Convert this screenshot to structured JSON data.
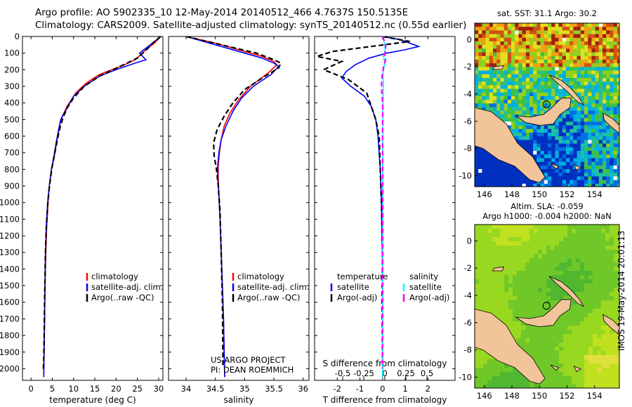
{
  "header": {
    "line1": "Argo profile: AO 5902335_10 12-May-2014 20140512_466 4.7637S 150.5135E",
    "line2": "Climatology: CARS2009. Satellite-adjusted climatology: synTS_20140512.nc (0.55d earlier)"
  },
  "footer": {
    "project": "US ARGO PROJECT",
    "pi": "PI: DEAN ROEMMICH"
  },
  "side_label": "IMOS 19-May-2014 20:01:13",
  "colors": {
    "climatology": "#ff0000",
    "satellite": "#0000ff",
    "argo": "#000000",
    "sal_satellite": "#00ffff",
    "sal_argo": "#ff00ff"
  },
  "chart_data": [
    {
      "type": "line",
      "id": "temperature",
      "xlabel": "temperature (deg C)",
      "ylabel": "",
      "xlim": [
        -2,
        31
      ],
      "ylim": [
        2070,
        0
      ],
      "invert_y": true,
      "xticks": [
        0,
        5,
        10,
        15,
        20,
        25,
        30
      ],
      "yticks": [
        0,
        100,
        200,
        300,
        400,
        500,
        600,
        700,
        800,
        900,
        1000,
        1100,
        1200,
        1300,
        1400,
        1500,
        1600,
        1700,
        1800,
        1900,
        2000
      ],
      "legend": [
        "climatology",
        "satellite-adj. clim.",
        "Argo(..raw -QC)"
      ],
      "series": [
        {
          "name": "climatology",
          "color": "#ff0000",
          "style": "solid",
          "x": [
            30.5,
            29,
            27,
            24.5,
            22,
            19,
            16,
            13,
            10.5,
            8.5,
            7,
            6.6,
            6,
            5.5,
            4.8,
            4.3,
            4,
            3.7,
            3.5,
            3.3,
            3.2,
            3.1,
            3,
            3
          ],
          "y": [
            0,
            40,
            80,
            140,
            170,
            200,
            230,
            280,
            340,
            420,
            500,
            560,
            640,
            720,
            800,
            900,
            1000,
            1150,
            1300,
            1500,
            1700,
            1850,
            2000,
            2050
          ]
        },
        {
          "name": "satellite",
          "color": "#0000ff",
          "style": "solid",
          "x": [
            30.5,
            29.5,
            27.5,
            25.5,
            27,
            24.5,
            20,
            16,
            12.5,
            10,
            8.5,
            7,
            6.5,
            5.9,
            5.4,
            4.8,
            4.3,
            3.9,
            3.6,
            3.4,
            3.3,
            3.2,
            3.1,
            3
          ],
          "y": [
            0,
            20,
            60,
            100,
            140,
            160,
            200,
            240,
            300,
            360,
            430,
            500,
            560,
            640,
            720,
            800,
            900,
            1000,
            1150,
            1300,
            1500,
            1700,
            1900,
            2050
          ]
        },
        {
          "name": "argo",
          "color": "#000000",
          "style": "dashed",
          "x": [
            30.5,
            29,
            27.5,
            25,
            21,
            16,
            12.5,
            10,
            8.5,
            7.5,
            6.8,
            6.2,
            5.6,
            5,
            4.6,
            4.2,
            3.9,
            3.6,
            3.4,
            3.3,
            3.2,
            3.1,
            3,
            2.9
          ],
          "y": [
            0,
            30,
            70,
            130,
            180,
            240,
            300,
            370,
            430,
            490,
            550,
            620,
            700,
            780,
            850,
            930,
            1020,
            1150,
            1300,
            1450,
            1600,
            1800,
            1950,
            2000
          ]
        }
      ]
    },
    {
      "type": "line",
      "id": "salinity",
      "xlabel": "salinity",
      "xlim": [
        33.7,
        36.1
      ],
      "ylim": [
        2070,
        0
      ],
      "invert_y": true,
      "xticks": [
        34,
        34.5,
        35,
        35.5,
        36
      ],
      "legend": [
        "climatology",
        "satellite-adj. clim.",
        "Argo(..raw -QC)"
      ],
      "series": [
        {
          "name": "climatology",
          "color": "#ff0000",
          "style": "solid",
          "x": [
            34,
            34.5,
            35,
            35.3,
            35.5,
            35.55,
            35.4,
            35.1,
            34.9,
            34.75,
            34.65,
            34.6,
            34.57,
            34.55,
            34.55,
            34.56,
            34.58,
            34.6,
            34.62,
            34.64,
            34.65,
            34.66
          ],
          "y": [
            0,
            40,
            90,
            120,
            150,
            170,
            220,
            300,
            380,
            460,
            540,
            620,
            700,
            780,
            850,
            950,
            1100,
            1300,
            1500,
            1700,
            1900,
            2050
          ]
        },
        {
          "name": "satellite",
          "color": "#0000ff",
          "style": "solid",
          "x": [
            34,
            34.4,
            34.9,
            35.3,
            35.5,
            35.58,
            35.45,
            35.15,
            34.95,
            34.8,
            34.68,
            34.6,
            34.56,
            34.54,
            34.54,
            34.56,
            34.58,
            34.6,
            34.62,
            34.64,
            34.65,
            34.66
          ],
          "y": [
            0,
            40,
            90,
            130,
            160,
            180,
            230,
            300,
            370,
            450,
            540,
            620,
            700,
            780,
            850,
            950,
            1100,
            1300,
            1500,
            1700,
            1900,
            2050
          ]
        },
        {
          "name": "argo",
          "color": "#000000",
          "style": "dashed",
          "x": [
            34,
            34.6,
            35.2,
            35.5,
            35.62,
            35.58,
            35.3,
            35.0,
            34.8,
            34.65,
            34.53,
            34.47,
            34.48,
            34.52,
            34.55,
            34.58,
            34.6,
            34.62,
            34.63
          ],
          "y": [
            0,
            50,
            100,
            140,
            160,
            190,
            250,
            320,
            400,
            480,
            560,
            640,
            720,
            800,
            900,
            1050,
            1300,
            1600,
            1980
          ]
        }
      ]
    },
    {
      "type": "line",
      "id": "differences",
      "xlabel": "T difference from climatology",
      "xlabel_top": "S difference from climatology",
      "xlim": [
        -3,
        3.2
      ],
      "ylim": [
        2070,
        0
      ],
      "invert_y": true,
      "xticks": [
        -2,
        -1,
        0,
        1,
        2
      ],
      "xticks_top": [
        -0.5,
        -0.25,
        0,
        0.25,
        0.5
      ],
      "xticks_top_labels": [
        "-0.5",
        "-0.25",
        "0",
        "0.25",
        "0.5"
      ],
      "legend_temperature": {
        "title": "temperature",
        "items": [
          "satellite",
          "Argo(-adj)"
        ]
      },
      "legend_salinity": {
        "title": "salinity",
        "items": [
          "satellite",
          "Argo(-adj)"
        ]
      },
      "series": [
        {
          "name": "T satellite",
          "color": "#0000ff",
          "style": "solid",
          "x": [
            0,
            0.8,
            1.2,
            1.6,
            1.0,
            0.2,
            -0.6,
            -1.2,
            -1.6,
            -1.8,
            -1.4,
            -0.8,
            -0.5,
            -0.3,
            -0.2,
            -0.1,
            -0.05,
            0,
            0,
            0
          ],
          "y": [
            0,
            20,
            40,
            60,
            80,
            100,
            130,
            170,
            210,
            250,
            300,
            360,
            420,
            500,
            600,
            800,
            1000,
            1400,
            1800,
            2050
          ]
        },
        {
          "name": "T argo",
          "color": "#000000",
          "style": "dashed",
          "x": [
            0,
            1.2,
            -0.5,
            -2.2,
            -2.9,
            -1.8,
            -2.6,
            -1.5,
            -0.7,
            -0.5,
            -0.3,
            -0.15,
            -0.1,
            -0.05,
            0,
            -0.02,
            0
          ],
          "y": [
            0,
            30,
            60,
            90,
            120,
            150,
            200,
            260,
            340,
            420,
            500,
            600,
            800,
            1000,
            1300,
            1600,
            2000
          ]
        },
        {
          "name": "S satellite",
          "color": "#00ffff",
          "style": "solid",
          "x": [
            0,
            0.08,
            0.12,
            0.05,
            0.1,
            0.02,
            0.04,
            0.02,
            0.01,
            0,
            0,
            0
          ],
          "y": [
            0,
            40,
            80,
            120,
            160,
            220,
            300,
            450,
            700,
            1000,
            1500,
            2050
          ]
        },
        {
          "name": "S argo",
          "color": "#ff00ff",
          "style": "dashed",
          "x": [
            0,
            0.12,
            0.15,
            0.08,
            0.13,
            0.05,
            -0.02,
            -0.05,
            0.01,
            0,
            0.01,
            0
          ],
          "y": [
            0,
            40,
            80,
            110,
            140,
            180,
            240,
            300,
            420,
            600,
            1000,
            2000
          ]
        }
      ]
    },
    {
      "type": "heatmap",
      "id": "sst_map",
      "title": "sat. SST: 31.1  Argo: 30.2",
      "xlim": [
        145.3,
        155.8
      ],
      "ylim": [
        -10.8,
        1.2
      ],
      "xticks": [
        146,
        148,
        150,
        152,
        154
      ],
      "yticks": [
        0,
        -2,
        -4,
        -6,
        -8,
        -10
      ],
      "argo_position": {
        "lon": 150.51,
        "lat": -4.76
      }
    },
    {
      "type": "heatmap",
      "id": "sla_map",
      "title": "Altim. SLA: -0.059",
      "subtitle": "Argo h1000: -0.004 h2000: NaN",
      "xlim": [
        145.3,
        155.8
      ],
      "ylim": [
        -10.8,
        1.2
      ],
      "xticks": [
        146,
        148,
        150,
        152,
        154
      ],
      "yticks": [
        0,
        -2,
        -4,
        -6,
        -8,
        -10
      ],
      "argo_position": {
        "lon": 150.51,
        "lat": -4.76
      }
    }
  ]
}
